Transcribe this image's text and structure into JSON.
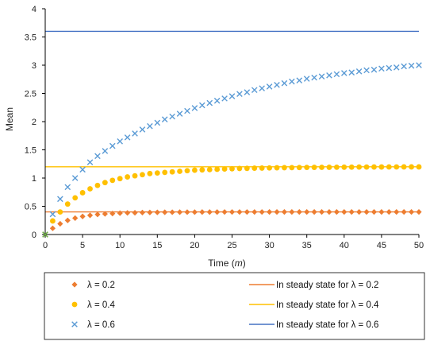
{
  "chart_data": {
    "type": "scatter",
    "title": "",
    "xlabel": "Time (m)",
    "xlabel_parts": [
      "Time (",
      "m",
      ")"
    ],
    "ylabel": "Mean",
    "xlim": [
      0,
      50
    ],
    "ylim": [
      0,
      4
    ],
    "x_ticks": [
      "0",
      "5",
      "10",
      "15",
      "20",
      "25",
      "30",
      "35",
      "40",
      "45",
      "50"
    ],
    "y_ticks": [
      "0",
      "0.5",
      "1",
      "1.5",
      "2",
      "2.5",
      "3",
      "3.5",
      "4"
    ],
    "x_tick_values": [
      0,
      5,
      10,
      15,
      20,
      25,
      30,
      35,
      40,
      45,
      50
    ],
    "y_tick_values": [
      0,
      0.5,
      1,
      1.5,
      2,
      2.5,
      3,
      3.5,
      4
    ],
    "grid": false,
    "legend_position": "bottom",
    "x": [
      0,
      1,
      2,
      3,
      4,
      5,
      6,
      7,
      8,
      9,
      10,
      11,
      12,
      13,
      14,
      15,
      16,
      17,
      18,
      19,
      20,
      21,
      22,
      23,
      24,
      25,
      26,
      27,
      28,
      29,
      30,
      31,
      32,
      33,
      34,
      35,
      36,
      37,
      38,
      39,
      40,
      41,
      42,
      43,
      44,
      45,
      46,
      47,
      48,
      49,
      50
    ],
    "series": [
      {
        "name": "λ = 0.2",
        "marker": "diamond",
        "color": "#ED7D31",
        "values": [
          0,
          0.11,
          0.19,
          0.25,
          0.29,
          0.32,
          0.34,
          0.355,
          0.365,
          0.372,
          0.378,
          0.383,
          0.386,
          0.389,
          0.391,
          0.393,
          0.394,
          0.395,
          0.396,
          0.397,
          0.397,
          0.398,
          0.398,
          0.398,
          0.399,
          0.399,
          0.399,
          0.399,
          0.399,
          0.399,
          0.4,
          0.4,
          0.4,
          0.4,
          0.4,
          0.4,
          0.4,
          0.4,
          0.4,
          0.4,
          0.4,
          0.4,
          0.4,
          0.4,
          0.4,
          0.4,
          0.4,
          0.4,
          0.4,
          0.4,
          0.4
        ]
      },
      {
        "name": "λ = 0.4",
        "marker": "circle",
        "color": "#FFC000",
        "values": [
          0,
          0.24,
          0.4,
          0.54,
          0.65,
          0.74,
          0.81,
          0.87,
          0.92,
          0.96,
          0.99,
          1.02,
          1.04,
          1.06,
          1.08,
          1.09,
          1.1,
          1.11,
          1.12,
          1.13,
          1.14,
          1.145,
          1.15,
          1.155,
          1.16,
          1.165,
          1.17,
          1.172,
          1.175,
          1.177,
          1.18,
          1.182,
          1.184,
          1.185,
          1.187,
          1.188,
          1.189,
          1.19,
          1.191,
          1.192,
          1.193,
          1.194,
          1.195,
          1.195,
          1.196,
          1.196,
          1.197,
          1.197,
          1.198,
          1.198,
          1.198
        ]
      },
      {
        "name": "λ = 0.6",
        "marker": "x",
        "color": "#5B9BD5",
        "values": [
          0,
          0.36,
          0.63,
          0.84,
          1.0,
          1.15,
          1.28,
          1.39,
          1.48,
          1.57,
          1.65,
          1.72,
          1.79,
          1.86,
          1.92,
          1.98,
          2.04,
          2.09,
          2.14,
          2.19,
          2.24,
          2.29,
          2.33,
          2.37,
          2.41,
          2.45,
          2.49,
          2.52,
          2.56,
          2.59,
          2.62,
          2.65,
          2.68,
          2.71,
          2.73,
          2.76,
          2.78,
          2.8,
          2.82,
          2.84,
          2.86,
          2.87,
          2.89,
          2.91,
          2.92,
          2.94,
          2.95,
          2.96,
          2.98,
          2.99,
          3.0
        ]
      }
    ],
    "steady_states": [
      {
        "name": "In steady state for λ = 0.2",
        "value": 0.4,
        "color": "#ED7D31"
      },
      {
        "name": "In steady state for λ = 0.4",
        "value": 1.2,
        "color": "#FFC000"
      },
      {
        "name": "In steady state  for λ = 0.6",
        "value": 3.6,
        "color": "#4472C4"
      }
    ],
    "zero_marker_color": "#70AD47"
  }
}
